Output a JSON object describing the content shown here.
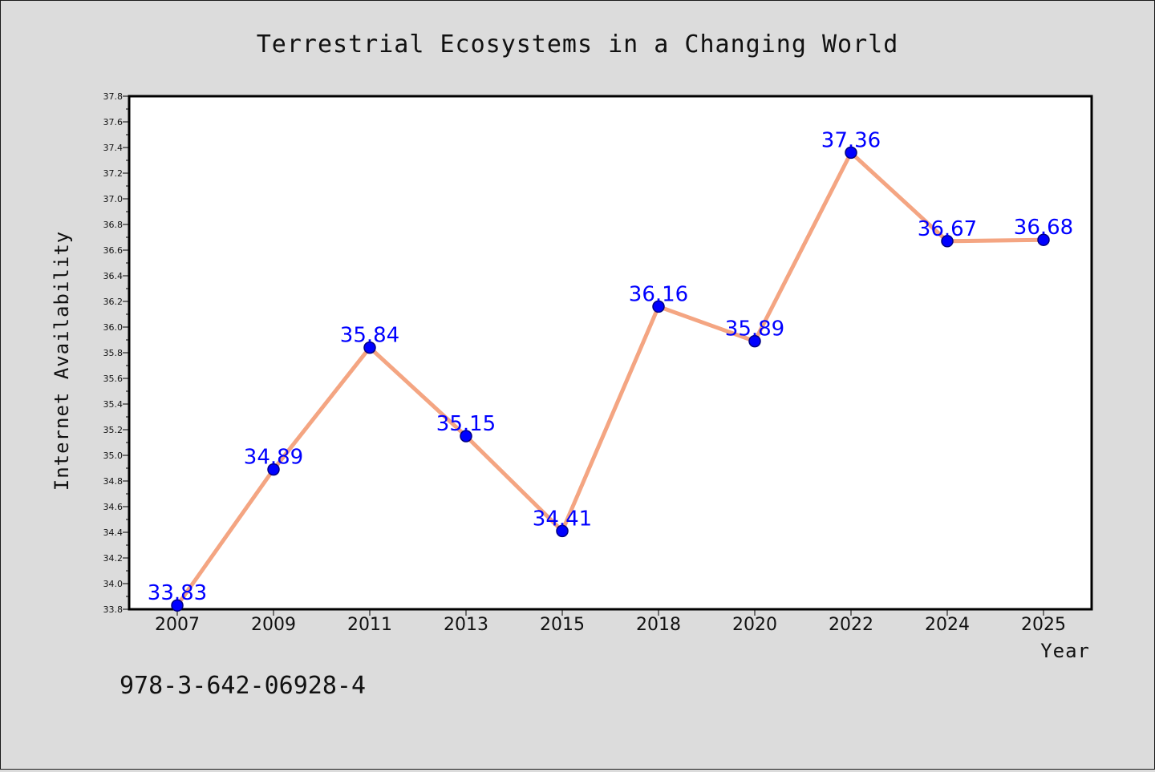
{
  "chart_data": {
    "type": "line",
    "title": "Terrestrial Ecosystems in a Changing World",
    "xlabel": "Year",
    "ylabel": "Internet Availability",
    "categories": [
      "2007",
      "2009",
      "2011",
      "2013",
      "2015",
      "2018",
      "2020",
      "2022",
      "2024",
      "2025"
    ],
    "series": [
      {
        "values": [
          33.83,
          34.89,
          35.84,
          35.15,
          34.41,
          36.16,
          35.89,
          37.36,
          36.67,
          36.68
        ],
        "labels": [
          "33.83",
          "34.89",
          "35.84",
          "35.15",
          "34.41",
          "36.16",
          "35.89",
          "37.36",
          "36.67",
          "36.68"
        ]
      }
    ],
    "ylim": [
      33.8,
      37.8
    ],
    "yticks": [
      "33.8",
      "34.0",
      "34.2",
      "34.4",
      "34.6",
      "34.8",
      "35.0",
      "35.2",
      "35.4",
      "35.6",
      "35.8",
      "36.0",
      "36.2",
      "36.4",
      "36.6",
      "36.8",
      "37.0",
      "37.2",
      "37.4",
      "37.6",
      "37.8"
    ],
    "grid": false,
    "colors": {
      "line": "#f4a582",
      "marker": "#0000ff",
      "marker_edge": "#000080",
      "label": "#0000ff",
      "background": "#dcdcdc",
      "plot_background": "#ffffff"
    }
  },
  "footer": {
    "isbn": "978-3-642-06928-4"
  }
}
